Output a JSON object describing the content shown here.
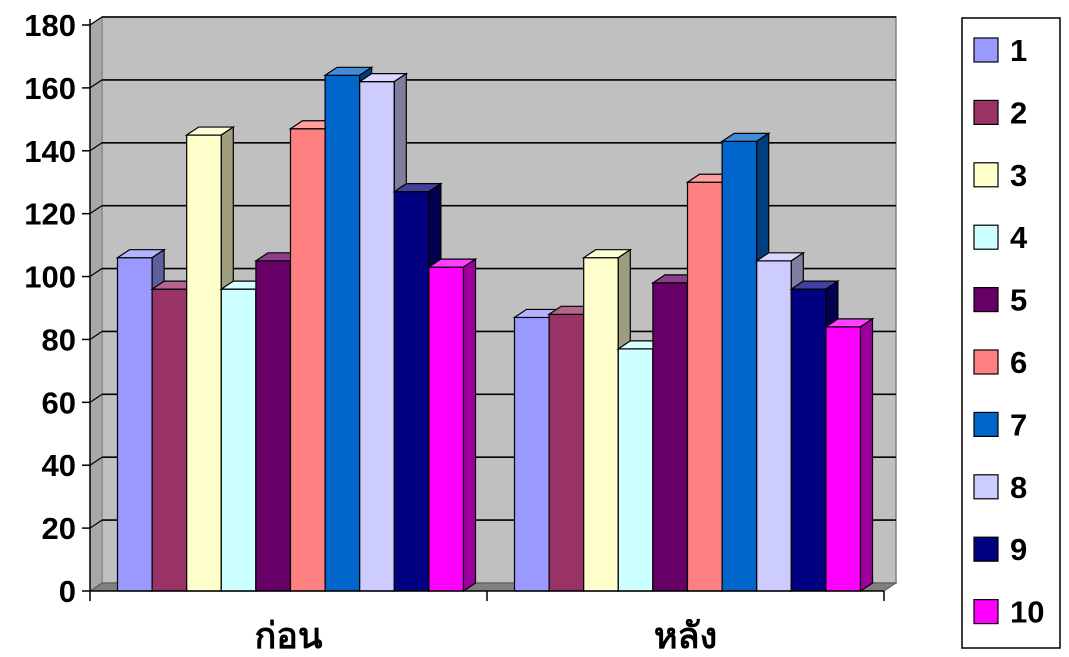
{
  "chart_data": {
    "type": "bar",
    "style": "3d-clustered-column",
    "categories": [
      "ก่อน",
      "หลัง"
    ],
    "series": [
      {
        "name": "1",
        "color": "#9999ff",
        "values": [
          106,
          87
        ]
      },
      {
        "name": "2",
        "color": "#993366",
        "values": [
          96,
          88
        ]
      },
      {
        "name": "3",
        "color": "#ffffcc",
        "values": [
          145,
          106
        ]
      },
      {
        "name": "4",
        "color": "#ccffff",
        "values": [
          96,
          77
        ]
      },
      {
        "name": "5",
        "color": "#660066",
        "values": [
          105,
          98
        ]
      },
      {
        "name": "6",
        "color": "#ff8080",
        "values": [
          147,
          130
        ]
      },
      {
        "name": "7",
        "color": "#0066cc",
        "values": [
          164,
          143
        ]
      },
      {
        "name": "8",
        "color": "#ccccff",
        "values": [
          162,
          105
        ]
      },
      {
        "name": "9",
        "color": "#000080",
        "values": [
          127,
          96
        ]
      },
      {
        "name": "10",
        "color": "#ff00ff",
        "values": [
          103,
          84
        ]
      }
    ],
    "yticks": [
      "0",
      "20",
      "40",
      "60",
      "80",
      "100",
      "120",
      "140",
      "160",
      "180"
    ],
    "ylim": [
      0,
      180
    ],
    "grid": true,
    "legend": "right",
    "wall_color": "#c0c0c0",
    "floor_color": "#808080"
  }
}
